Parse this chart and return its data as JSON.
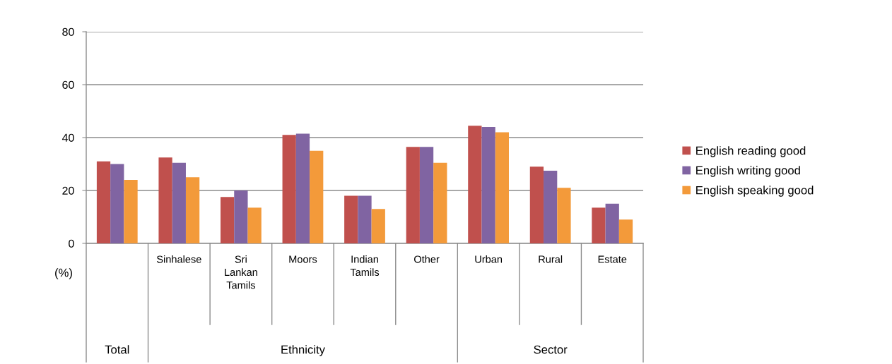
{
  "chart_data": {
    "type": "bar",
    "categories": [
      null,
      "Sinhalese",
      "Sri Lankan Tamils",
      "Moors",
      "Indian Tamils",
      "Other",
      "Urban",
      "Rural",
      "Estate"
    ],
    "series": [
      {
        "name": "English reading good",
        "color": "#c0504d",
        "values": [
          31,
          32.5,
          17.5,
          41,
          18,
          36.5,
          44.5,
          29,
          13.5
        ]
      },
      {
        "name": "English writing good",
        "color": "#8064a2",
        "values": [
          30,
          30.5,
          20,
          41.5,
          18,
          36.5,
          44,
          27.5,
          15
        ]
      },
      {
        "name": "English speaking good",
        "color": "#f39a3a",
        "values": [
          24,
          25,
          13.5,
          35,
          13,
          30.5,
          42,
          21,
          9
        ]
      }
    ],
    "ylabel": "(%)",
    "annotations": [
      "Total",
      "Ethnicity",
      "Sector"
    ],
    "ylim": [
      0,
      80
    ],
    "yticks": [
      0,
      20,
      40,
      60,
      80
    ],
    "grid": "y",
    "legend": "right"
  }
}
